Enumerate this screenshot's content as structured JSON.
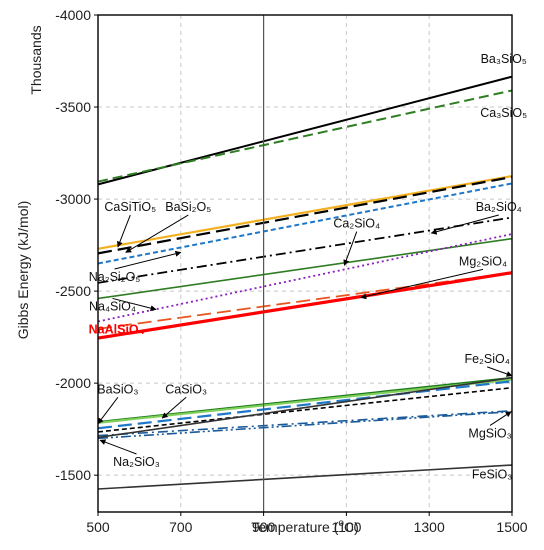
{
  "chart_data": {
    "type": "line",
    "title": "",
    "xlabel": "Temperature (",
    "xlabel_sup": "o",
    "xlabel_tail": "C)",
    "ylabel": "Gibbs Energy (kJ/mol)",
    "y_units_label": "Thousands",
    "xlim": [
      500,
      1500
    ],
    "ylim": [
      -1300,
      -4000
    ],
    "x_ticks": [
      "500",
      "700",
      "900",
      "1100",
      "1300",
      "1500"
    ],
    "y_ticks": [
      "-4000",
      "-3500",
      "-3000",
      "-2500",
      "-2000",
      "-1500"
    ],
    "grid": true,
    "reference_line_x": 900,
    "series": [
      {
        "name": "Ba3SiO5",
        "label": "Ba₃SiO₅",
        "color": "#000000",
        "dash": "solid",
        "width": 2,
        "x": [
          500,
          1500
        ],
        "y": [
          -3080,
          -3665
        ]
      },
      {
        "name": "Ca3SiO5",
        "label": "Ca₃SiO₅",
        "color": "#2e7d22",
        "dash": "dash",
        "width": 2,
        "x": [
          500,
          1500
        ],
        "y": [
          -3095,
          -3590
        ]
      },
      {
        "name": "CaSiTiO5",
        "label": "CaSiTiO₅",
        "color": "#f2b01e",
        "dash": "solid",
        "width": 2.2,
        "x": [
          500,
          1500
        ],
        "y": [
          -2730,
          -3125
        ]
      },
      {
        "name": "BaSi2O5",
        "label": "BaSi₂O₅",
        "color": "#000000",
        "dash": "longdash",
        "width": 2.2,
        "x": [
          500,
          1500
        ],
        "y": [
          -2705,
          -3120
        ]
      },
      {
        "name": "Na2Si2O5",
        "label": "Na₂Si₂O₅",
        "color": "#1f77c8",
        "dash": "shortdash",
        "width": 2,
        "x": [
          500,
          1500
        ],
        "y": [
          -2650,
          -3085
        ]
      },
      {
        "name": "Ba2SiO4",
        "label": "Ba₂SiO₄",
        "color": "#000000",
        "dash": "dashdot",
        "width": 1.8,
        "x": [
          500,
          1500
        ],
        "y": [
          -2545,
          -2900
        ]
      },
      {
        "name": "Ca2SiO4",
        "label": "Ca₂SiO₄",
        "color": "#2e7d22",
        "dash": "solid",
        "width": 1.6,
        "x": [
          500,
          1500
        ],
        "y": [
          -2460,
          -2785
        ]
      },
      {
        "name": "Na4SiO4",
        "label": "Na₄SiO₄",
        "color": "#8b1fbf",
        "dash": "dot",
        "width": 1.8,
        "x": [
          500,
          1500
        ],
        "y": [
          -2335,
          -2810
        ]
      },
      {
        "name": "Mg2SiO4",
        "label": "Mg₂SiO₄",
        "color": "#e8541c",
        "dash": "longdash",
        "width": 1.8,
        "x": [
          500,
          1500
        ],
        "y": [
          -2295,
          -2600
        ]
      },
      {
        "name": "NaAlSiO4",
        "label": "NaAlSiO₄",
        "color": "#ff0000",
        "dash": "solid",
        "width": 3.2,
        "highlight": true,
        "x": [
          500,
          1500
        ],
        "y": [
          -2245,
          -2600
        ]
      },
      {
        "name": "Fe2SiO4",
        "label": "Fe₂SiO₄",
        "color": "#1a7a1a",
        "dash": "solid",
        "width": 1.6,
        "x": [
          500,
          1500
        ],
        "y": [
          -1790,
          -2030
        ]
      },
      {
        "name": "BaSiO3",
        "label": "BaSiO₃",
        "color": "#7fcf5a",
        "dash": "solid",
        "width": 2.2,
        "x": [
          500,
          1500
        ],
        "y": [
          -1785,
          -2020
        ]
      },
      {
        "name": "CaSiO3",
        "label": "CaSiO₃",
        "color": "#1f77c8",
        "dash": "longdash",
        "width": 2.2,
        "x": [
          500,
          1500
        ],
        "y": [
          -1755,
          -2010
        ]
      },
      {
        "name": "Na2SiO3",
        "label": "Na₂SiO₃",
        "color": "#000000",
        "dash": "shortdash",
        "width": 1.6,
        "x": [
          500,
          1500
        ],
        "y": [
          -1735,
          -1975
        ]
      },
      {
        "name": "MgSiO3",
        "label": "MgSiO₃",
        "color": "#1a5a9a",
        "dash": "dashdotdot",
        "width": 1.6,
        "x": [
          500,
          1500
        ],
        "y": [
          -1700,
          -1845
        ]
      },
      {
        "name": "MgSiO3-b",
        "label": "",
        "color": "#1a5a9a",
        "dash": "dashdot",
        "width": 1.6,
        "x": [
          500,
          1500
        ],
        "y": [
          -1715,
          -1850
        ]
      },
      {
        "name": "FeSiO3",
        "label": "FeSiO₃",
        "color": "#333333",
        "dash": "solid",
        "width": 1.6,
        "x": [
          500,
          1500
        ],
        "y": [
          -1425,
          -1555
        ]
      },
      {
        "name": "Fe-other",
        "label": "",
        "color": "#333333",
        "dash": "solid",
        "width": 1.6,
        "x": [
          500,
          1500
        ],
        "y": [
          -1705,
          -2030
        ]
      }
    ],
    "annotations": [
      {
        "text": "Ba₃SiO₅",
        "tx": 1480,
        "ty": -3740,
        "ax": null,
        "ay": null,
        "anchor": "middle"
      },
      {
        "text": "Ca₃SiO₅",
        "tx": 1480,
        "ty": -3445,
        "ax": null,
        "ay": null,
        "anchor": "middle"
      },
      {
        "text": "CaSiTiO₅",
        "tx": 578,
        "ty": -2935,
        "ax": 548,
        "ay": -2740,
        "anchor": "middle"
      },
      {
        "text": "BaSi₂O₅",
        "tx": 718,
        "ty": -2935,
        "ax": 567,
        "ay": -2710,
        "anchor": "middle"
      },
      {
        "text": "Na₂Si₂O₅",
        "tx": 540,
        "ty": -2555,
        "ax": 700,
        "ay": -2710,
        "anchor": "middle"
      },
      {
        "text": "Ba₂SiO₄",
        "tx": 1468,
        "ty": -2935,
        "ax": 1305,
        "ay": -2815,
        "anchor": "middle"
      },
      {
        "text": "Ca₂SiO₄",
        "tx": 1125,
        "ty": -2845,
        "ax": 1095,
        "ay": -2640,
        "anchor": "middle"
      },
      {
        "text": "Na₄SiO₄",
        "tx": 535,
        "ty": -2395,
        "ax": 640,
        "ay": -2400,
        "anchor": "middle"
      },
      {
        "text": "Mg₂SiO₄",
        "tx": 1430,
        "ty": -2640,
        "ax": 1135,
        "ay": -2465,
        "anchor": "middle"
      },
      {
        "text": "NaAlSiO₄",
        "tx": 545,
        "ty": -2270,
        "ax": null,
        "ay": null,
        "anchor": "middle",
        "highlight": true
      },
      {
        "text": "Fe₂SiO₄",
        "tx": 1440,
        "ty": -2110,
        "ax": 1500,
        "ay": -2040,
        "anchor": "middle"
      },
      {
        "text": "BaSiO₃",
        "tx": 548,
        "ty": -1945,
        "ax": 500,
        "ay": -1780,
        "anchor": "middle"
      },
      {
        "text": "CaSiO₃",
        "tx": 713,
        "ty": -1945,
        "ax": 655,
        "ay": -1810,
        "anchor": "middle"
      },
      {
        "text": "Na₂SiO₃",
        "tx": 593,
        "ty": -1550,
        "ax": 505,
        "ay": -1690,
        "anchor": "middle"
      },
      {
        "text": "MgSiO₃",
        "tx": 1447,
        "ty": -1705,
        "ax": 1498,
        "ay": -1845,
        "anchor": "middle"
      },
      {
        "text": "FeSiO₃",
        "tx": 1452,
        "ty": -1483,
        "ax": null,
        "ay": null,
        "anchor": "middle"
      }
    ]
  }
}
